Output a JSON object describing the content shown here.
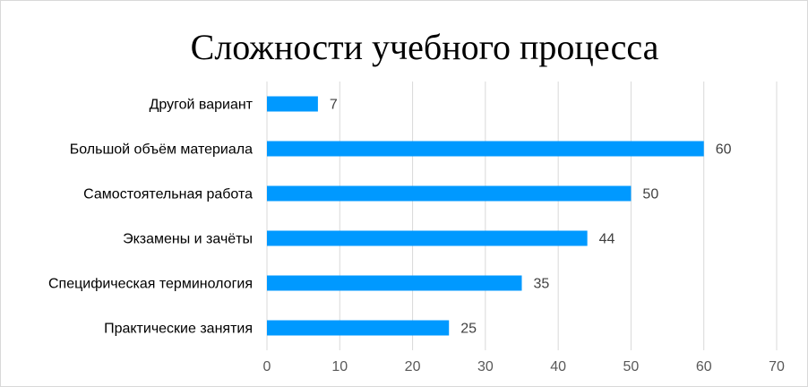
{
  "chart_data": {
    "type": "bar",
    "orientation": "horizontal",
    "title": "Сложности учебного процесса",
    "xlabel": "",
    "ylabel": "",
    "categories": [
      "Другой вариант",
      "Большой объём материала",
      "Самостоятельная работа",
      "Экзамены и зачёты",
      "Специфическая терминология",
      "Практические занятия"
    ],
    "values": [
      7,
      60,
      50,
      44,
      35,
      25
    ],
    "xlim": [
      0,
      70
    ],
    "xticks": [
      "0",
      "10",
      "20",
      "30",
      "40",
      "50",
      "60",
      "70"
    ],
    "grid": true,
    "legend": "none",
    "bar_color": "#0099FF",
    "grid_color": "#D9D9D9"
  }
}
